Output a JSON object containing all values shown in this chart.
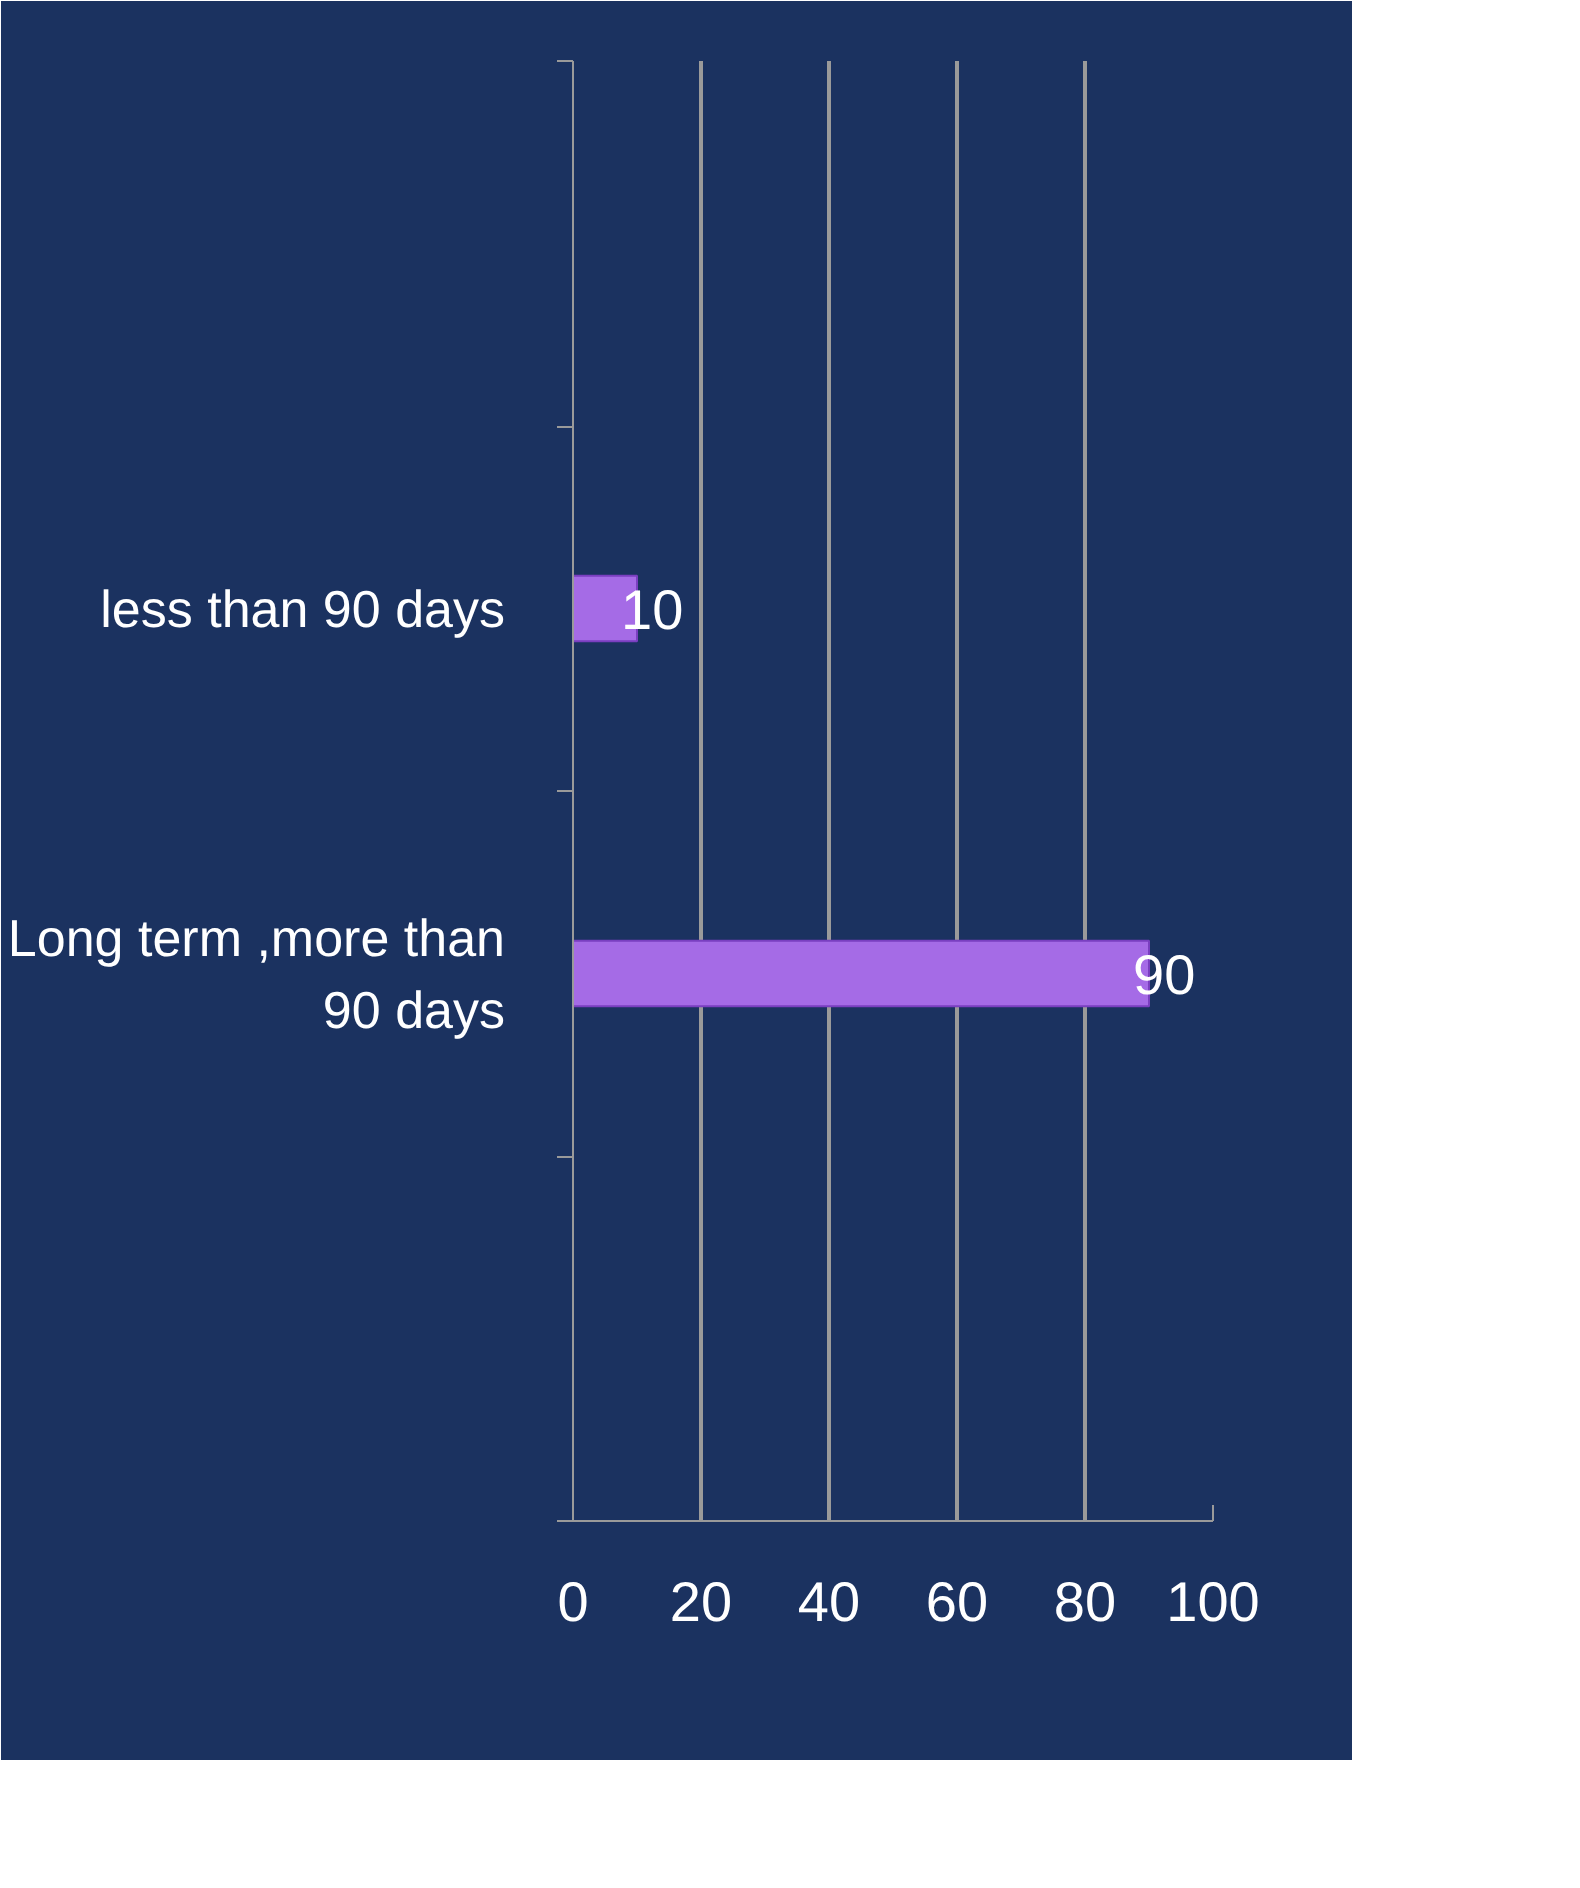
{
  "chart_data": {
    "type": "bar",
    "orientation": "horizontal",
    "categories": [
      null,
      "less than 90 days",
      "Long term ,more than 90 days",
      null
    ],
    "values": [
      null,
      10,
      90,
      null
    ],
    "color": "#a56be6",
    "data_labels": true,
    "xlim": [
      0,
      100
    ],
    "xticks": [
      0,
      20,
      40,
      60,
      80,
      100
    ],
    "grid": "x"
  }
}
